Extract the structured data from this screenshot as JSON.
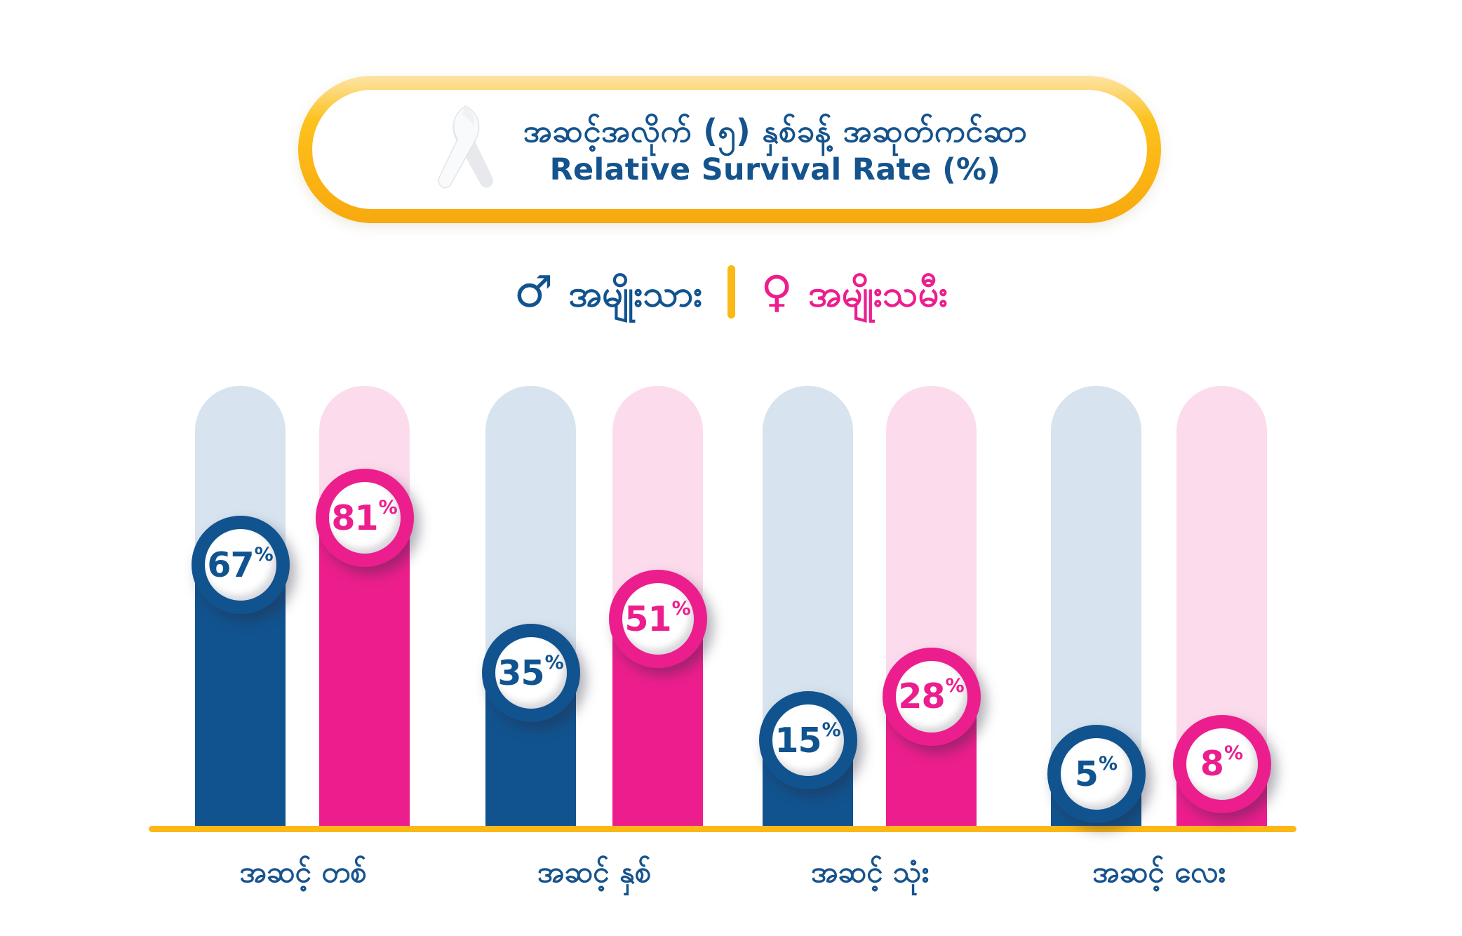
{
  "title": {
    "line1_burmese": "အဆင့်အလိုက် (၅) နှစ်ခန့် အဆုတ်ကင်ဆာ",
    "line2_english": "Relative Survival Rate (%)"
  },
  "legend": {
    "male": {
      "symbol": "♂",
      "label": "အမျိုးသား"
    },
    "female": {
      "symbol": "♀",
      "label": "အမျိုးသမီး"
    }
  },
  "chart_data": {
    "type": "bar",
    "title": "အဆင့်အလိုက် (၅) နှစ်ခန့် အဆုတ်ကင်ဆာ — Relative Survival Rate (%)",
    "categories": [
      "အဆင့် တစ်",
      "အဆင့် နှစ်",
      "အဆင့် သုံး",
      "အဆင့် လေး"
    ],
    "series": [
      {
        "name": "အမျိုးသား (Male)",
        "values": [
          67,
          35,
          15,
          5
        ]
      },
      {
        "name": "အမျိုးသမီး (Female)",
        "values": [
          81,
          51,
          28,
          8
        ]
      }
    ],
    "unit": "%",
    "ylim": [
      0,
      100
    ],
    "legend_position": "top",
    "grid": false
  },
  "colors": {
    "male": "#11538f",
    "female": "#ec1e8d",
    "male_track": "#d7e3ee",
    "female_track": "#fcdcec",
    "gold": "#fcb816",
    "title_text": "#14538c"
  },
  "icons": {
    "ribbon": "white-awareness-ribbon"
  }
}
